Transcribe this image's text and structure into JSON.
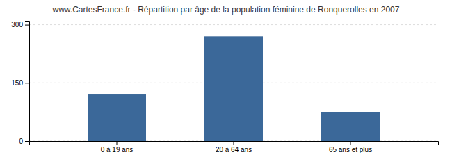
{
  "chart_data": {
    "type": "bar",
    "title": "www.CartesFrance.fr - Répartition par âge de la population féminine de Ronquerolles en 2007",
    "categories": [
      "0 à 19 ans",
      "20 à 64 ans",
      "65 ans et plus"
    ],
    "values": [
      120,
      270,
      75
    ],
    "color": "#3b6899",
    "ylim": [
      0,
      310
    ],
    "yticks": [
      0,
      150,
      300
    ],
    "grid": true
  }
}
